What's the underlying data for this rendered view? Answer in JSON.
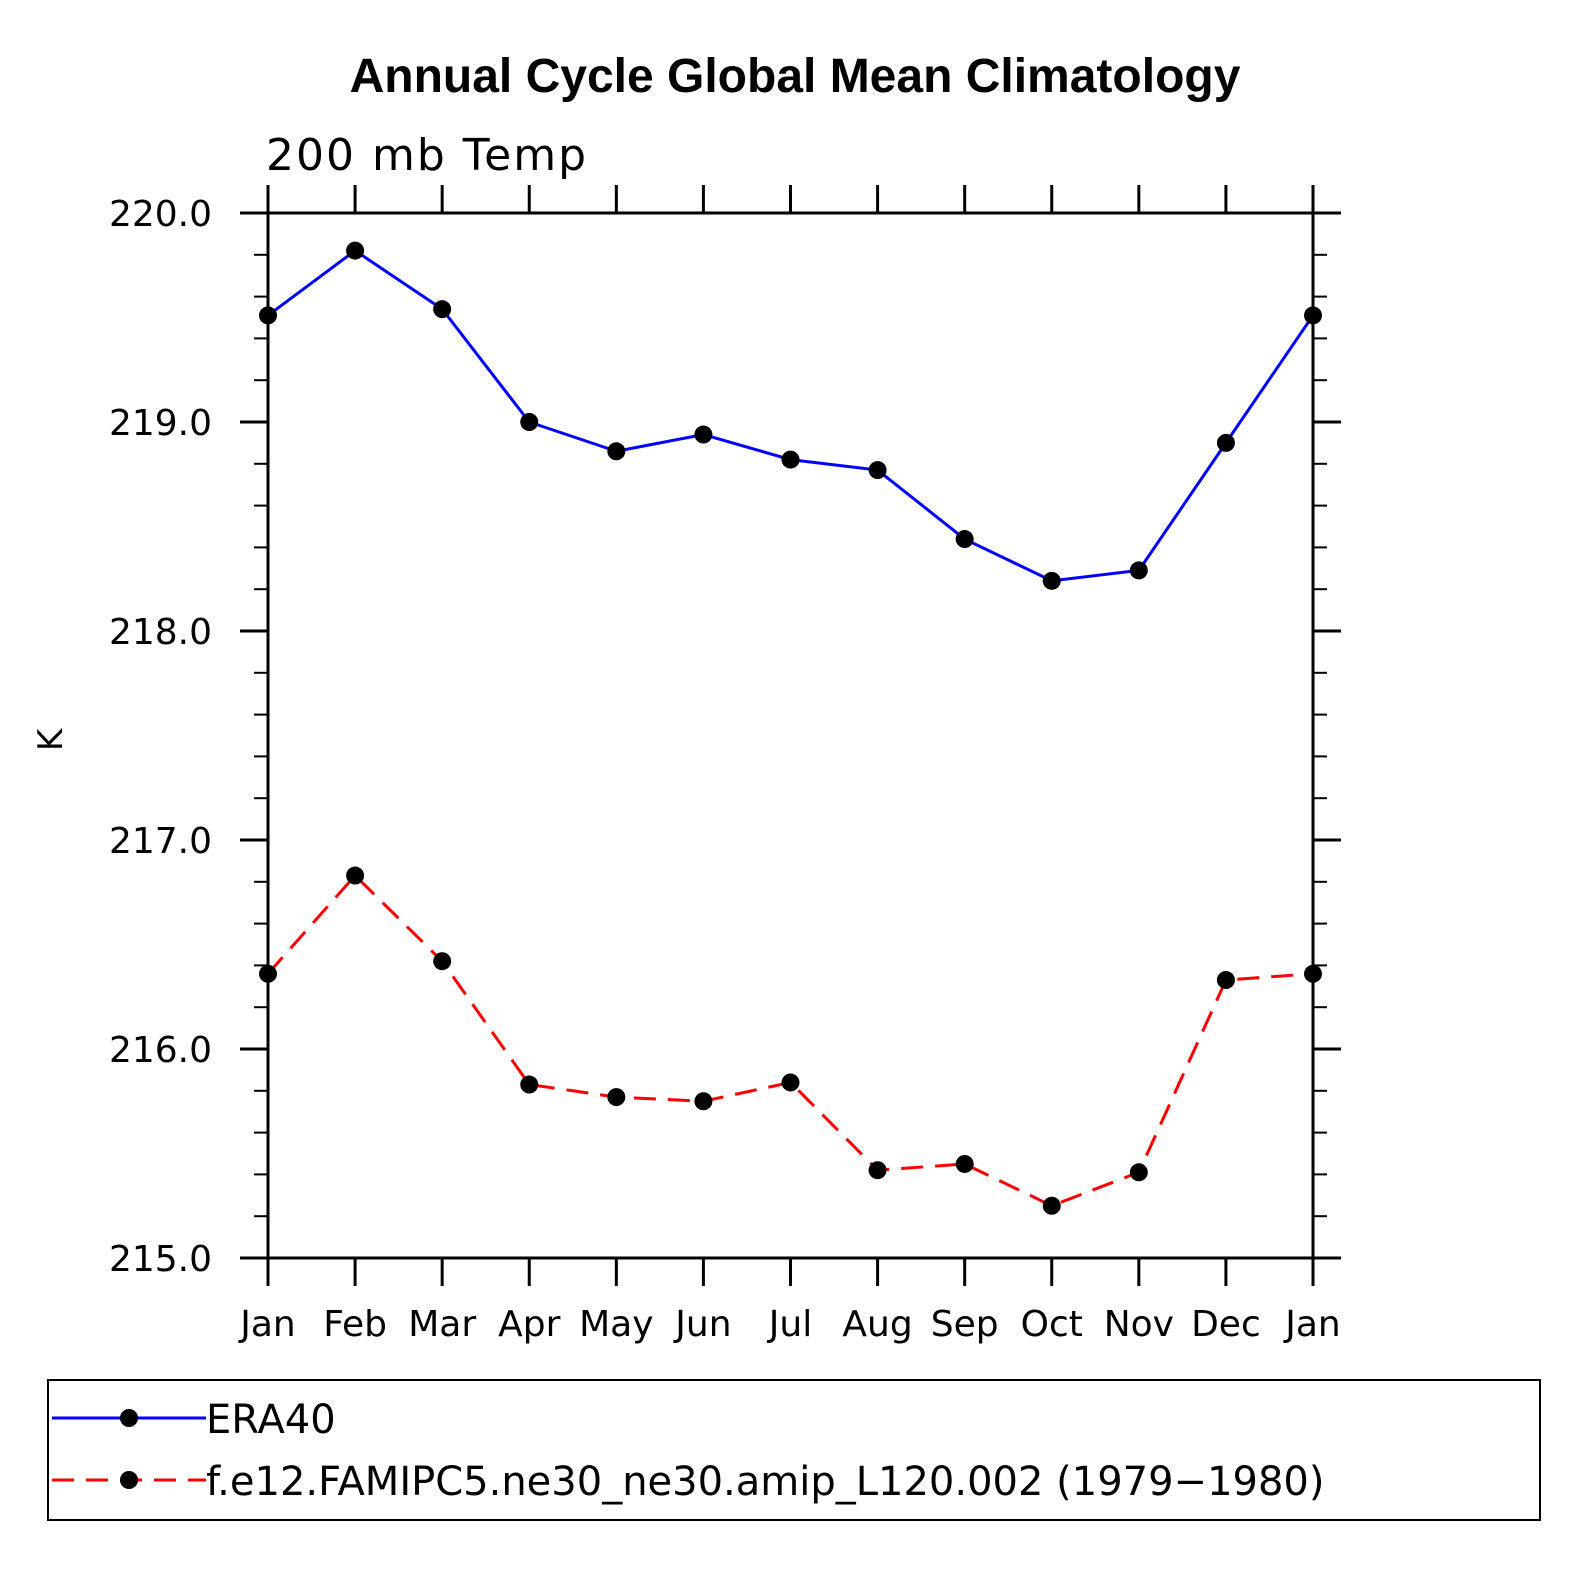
{
  "chart_data": {
    "type": "line",
    "title": "Annual Cycle Global Mean Climatology",
    "subtitle": "200 mb Temp",
    "xlabel": "",
    "ylabel": "K",
    "categories": [
      "Jan",
      "Feb",
      "Mar",
      "Apr",
      "May",
      "Jun",
      "Jul",
      "Aug",
      "Sep",
      "Oct",
      "Nov",
      "Dec",
      "Jan"
    ],
    "ylim": [
      215.0,
      220.0
    ],
    "yticks": [
      "215.0",
      "216.0",
      "217.0",
      "218.0",
      "219.0",
      "220.0"
    ],
    "series": [
      {
        "name": "ERA40",
        "color": "#0000ff",
        "line_style": "solid",
        "marker": "filled-circle",
        "values": [
          219.51,
          219.82,
          219.54,
          219.0,
          218.86,
          218.94,
          218.82,
          218.77,
          218.44,
          218.24,
          218.29,
          218.9,
          219.51
        ]
      },
      {
        "name": "f.e12.FAMIPC5.ne30_ne30.amip_L120.002 (1979-1980)",
        "color": "#ff0000",
        "line_style": "dashed",
        "marker": "filled-circle",
        "values": [
          216.36,
          216.83,
          216.42,
          215.83,
          215.77,
          215.75,
          215.84,
          215.42,
          215.45,
          215.25,
          215.41,
          216.33,
          216.36
        ]
      }
    ],
    "legend_position": "bottom"
  },
  "legend_labels": {
    "era40": "ERA40",
    "model": "f.e12.FAMIPC5.ne30_ne30.amip_L120.002 (1979−1980)"
  }
}
